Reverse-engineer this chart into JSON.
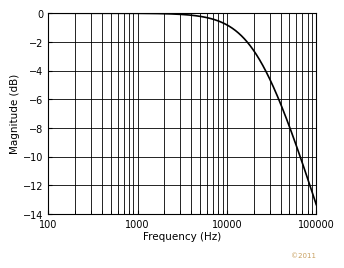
{
  "title": "",
  "xlabel": "Frequency (Hz)",
  "ylabel": "Magnitude (dB)",
  "xlim": [
    100,
    100000
  ],
  "ylim": [
    -14,
    0
  ],
  "yticks": [
    0,
    -2,
    -4,
    -6,
    -8,
    -10,
    -12,
    -14
  ],
  "fc": 22000,
  "filter_order": 1,
  "line_color": "#000000",
  "line_width": 1.2,
  "grid_color": "#000000",
  "background_color": "#ffffff",
  "watermark": "©2011",
  "watermark_color": "#c8a060"
}
